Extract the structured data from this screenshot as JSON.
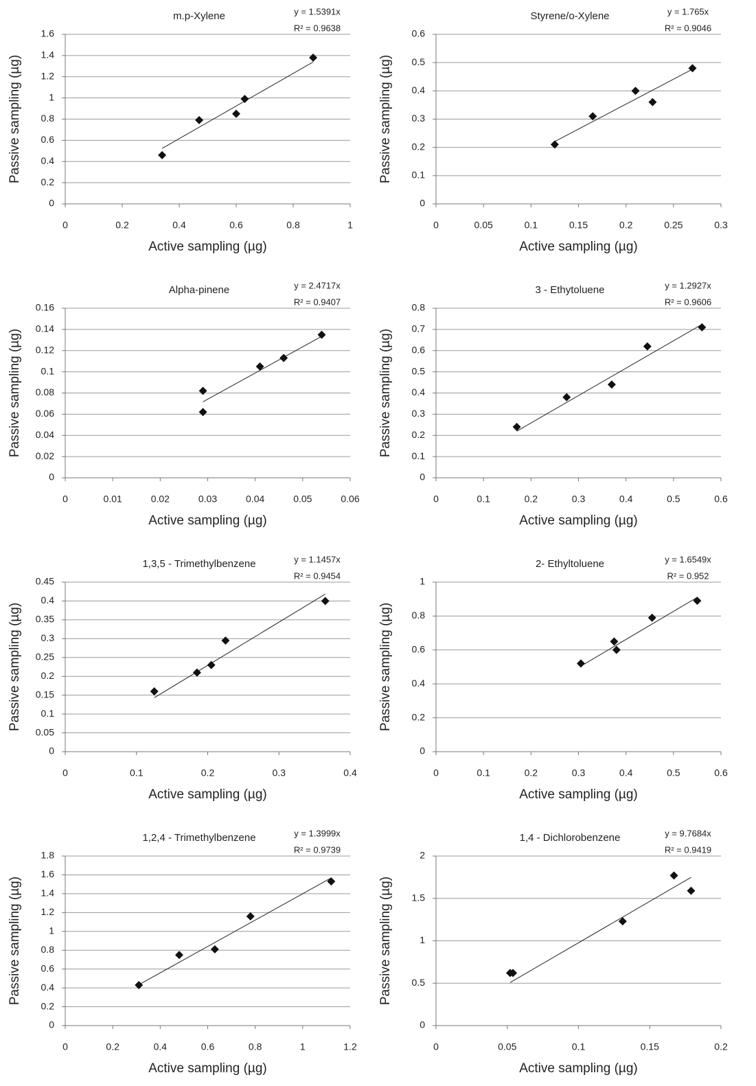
{
  "chart_data": [
    {
      "type": "scatter",
      "title": "m.p-Xylene",
      "trendline": {
        "slope": 1.5391,
        "label": "y = 1.5391x"
      },
      "r2_label": "R² = 0.9638",
      "x_label": "Active sampling (µg)",
      "y_label": "Passive sampling (µg)",
      "x": [
        0.34,
        0.47,
        0.6,
        0.63,
        0.87
      ],
      "y": [
        0.46,
        0.79,
        0.85,
        0.99,
        1.38
      ],
      "xlim": [
        0,
        1
      ],
      "xticks": [
        0,
        0.2,
        0.4,
        0.6,
        0.8,
        1
      ],
      "ylim": [
        0,
        1.6
      ],
      "yticks": [
        0,
        0.2,
        0.4,
        0.6,
        0.8,
        1,
        1.2,
        1.4,
        1.6
      ],
      "color": "#111111",
      "grid": true
    },
    {
      "type": "scatter",
      "title": "Styrene/o-Xylene",
      "trendline": {
        "slope": 1.765,
        "label": "y = 1.765x"
      },
      "r2_label": "R² = 0.9046",
      "x_label": "Active sampling (µg)",
      "y_label": "Passive sampling (µg)",
      "x": [
        0.125,
        0.165,
        0.21,
        0.228,
        0.27
      ],
      "y": [
        0.21,
        0.31,
        0.4,
        0.36,
        0.48
      ],
      "xlim": [
        0,
        0.3
      ],
      "xticks": [
        0,
        0.05,
        0.1,
        0.15,
        0.2,
        0.25,
        0.3
      ],
      "ylim": [
        0,
        0.6
      ],
      "yticks": [
        0,
        0.1,
        0.2,
        0.3,
        0.4,
        0.5,
        0.6
      ],
      "color": "#111111",
      "grid": true
    },
    {
      "type": "scatter",
      "title": "Alpha-pinene",
      "trendline": {
        "slope": 2.4717,
        "label": "y = 2.4717x"
      },
      "r2_label": "R² = 0.9407",
      "x_label": "Active sampling (µg)",
      "y_label": "Passive sampling (µg)",
      "x": [
        0.029,
        0.029,
        0.041,
        0.046,
        0.054
      ],
      "y": [
        0.082,
        0.062,
        0.105,
        0.113,
        0.135
      ],
      "xlim": [
        0,
        0.06
      ],
      "xticks": [
        0,
        0.01,
        0.02,
        0.03,
        0.04,
        0.05,
        0.06
      ],
      "ylim": [
        0,
        0.16
      ],
      "yticks": [
        0,
        0.02,
        0.04,
        0.06,
        0.08,
        0.1,
        0.12,
        0.14,
        0.16
      ],
      "color": "#111111",
      "grid": true
    },
    {
      "type": "scatter",
      "title": "3 - Ethytoluene",
      "trendline": {
        "slope": 1.2927,
        "label": "y = 1.2927x"
      },
      "r2_label": "R² = 0.9606",
      "x_label": "Active sampling (µg)",
      "y_label": "Passive sampling (µg)",
      "x": [
        0.17,
        0.275,
        0.37,
        0.445,
        0.56
      ],
      "y": [
        0.24,
        0.38,
        0.44,
        0.62,
        0.71
      ],
      "xlim": [
        0,
        0.6
      ],
      "xticks": [
        0,
        0.1,
        0.2,
        0.3,
        0.4,
        0.5,
        0.6
      ],
      "ylim": [
        0,
        0.8
      ],
      "yticks": [
        0,
        0.1,
        0.2,
        0.3,
        0.4,
        0.5,
        0.6,
        0.7,
        0.8
      ],
      "color": "#111111",
      "grid": true
    },
    {
      "type": "scatter",
      "title": "1,3,5 - Trimethylbenzene",
      "trendline": {
        "slope": 1.1457,
        "label": "y = 1.1457x"
      },
      "r2_label": "R² = 0.9454",
      "x_label": "Active sampling (µg)",
      "y_label": "Passive sampling (µg)",
      "x": [
        0.125,
        0.185,
        0.205,
        0.225,
        0.365
      ],
      "y": [
        0.16,
        0.21,
        0.23,
        0.295,
        0.4
      ],
      "xlim": [
        0,
        0.4
      ],
      "xticks": [
        0,
        0.1,
        0.2,
        0.3,
        0.4
      ],
      "ylim": [
        0,
        0.45
      ],
      "yticks": [
        0,
        0.05,
        0.1,
        0.15,
        0.2,
        0.25,
        0.3,
        0.35,
        0.4,
        0.45
      ],
      "color": "#111111",
      "grid": true
    },
    {
      "type": "scatter",
      "title": "2- Ethyltoluene",
      "trendline": {
        "slope": 1.6549,
        "label": "y = 1.6549x"
      },
      "r2_label": "R² = 0.952",
      "x_label": "Active sampling (µg)",
      "y_label": "Passive sampling (µg)",
      "x": [
        0.305,
        0.375,
        0.38,
        0.455,
        0.55
      ],
      "y": [
        0.52,
        0.65,
        0.6,
        0.79,
        0.89
      ],
      "xlim": [
        0,
        0.6
      ],
      "xticks": [
        0,
        0.1,
        0.2,
        0.3,
        0.4,
        0.5,
        0.6
      ],
      "ylim": [
        0,
        1
      ],
      "yticks": [
        0,
        0.2,
        0.4,
        0.6,
        0.8,
        1
      ],
      "color": "#111111",
      "grid": true
    },
    {
      "type": "scatter",
      "title": "1,2,4 - Trimethylbenzene",
      "trendline": {
        "slope": 1.3999,
        "label": "y = 1.3999x"
      },
      "r2_label": "R² = 0.9739",
      "x_label": "Active sampling (µg)",
      "y_label": "Passive sampling (µg)",
      "x": [
        0.31,
        0.48,
        0.63,
        0.78,
        1.12
      ],
      "y": [
        0.43,
        0.75,
        0.81,
        1.16,
        1.53
      ],
      "xlim": [
        0,
        1.2
      ],
      "xticks": [
        0,
        0.2,
        0.4,
        0.6,
        0.8,
        1,
        1.2
      ],
      "ylim": [
        0,
        1.8
      ],
      "yticks": [
        0,
        0.2,
        0.4,
        0.6,
        0.8,
        1,
        1.2,
        1.4,
        1.6,
        1.8
      ],
      "color": "#111111",
      "grid": true
    },
    {
      "type": "scatter",
      "title": "1,4 - Dichlorobenzene",
      "trendline": {
        "slope": 9.7684,
        "label": "y = 9.7684x"
      },
      "r2_label": "R² = 0.9419",
      "x_label": "Active sampling (µg)",
      "y_label": "Passive sampling (µg)",
      "x": [
        0.052,
        0.054,
        0.131,
        0.167,
        0.179
      ],
      "y": [
        0.62,
        0.62,
        1.23,
        1.77,
        1.59
      ],
      "xlim": [
        0,
        0.2
      ],
      "xticks": [
        0,
        0.05,
        0.1,
        0.15,
        0.2
      ],
      "ylim": [
        0,
        2
      ],
      "yticks": [
        0,
        0.5,
        1,
        1.5,
        2
      ],
      "color": "#111111",
      "grid": true
    }
  ]
}
